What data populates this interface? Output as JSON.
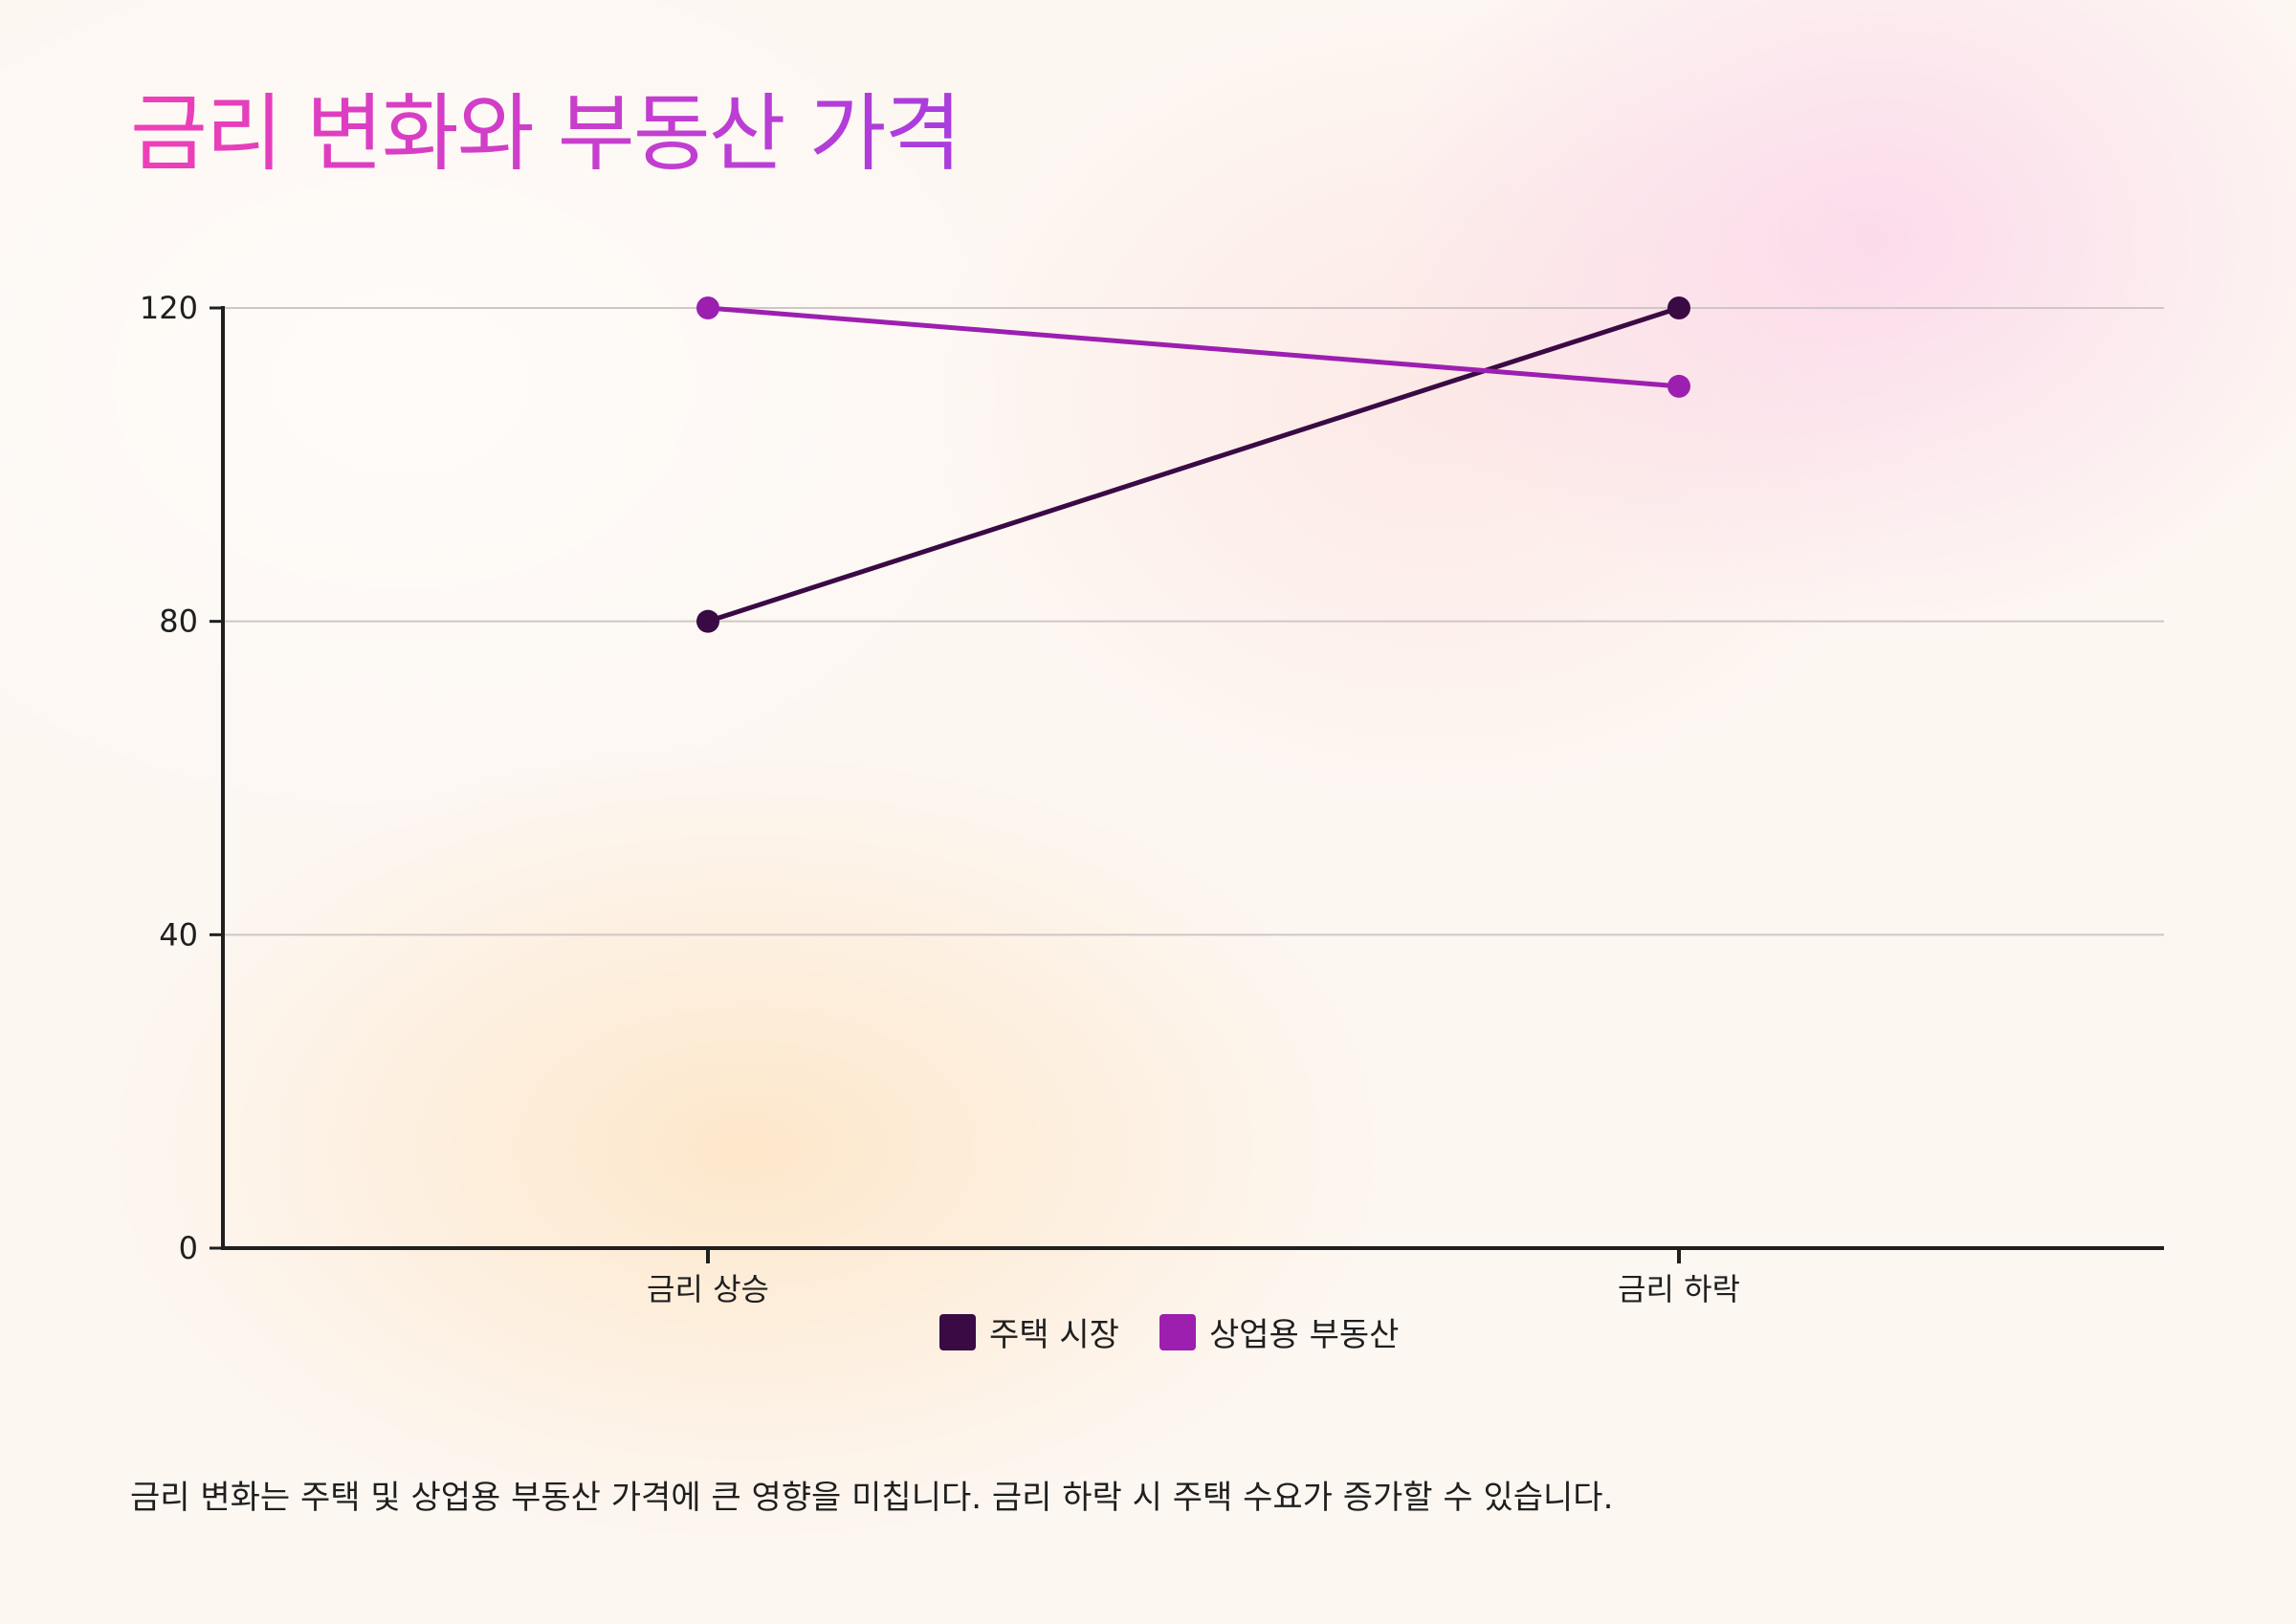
{
  "title": "금리 변화와 부동산 가격",
  "caption": "금리 변화는 주택 및 상업용 부동산 가격에 큰 영향을 미칩니다. 금리 하락 시 주택 수요가 증가할 수 있습니다.",
  "chart_data": {
    "type": "line",
    "categories": [
      "금리 상승",
      "금리 하락"
    ],
    "series": [
      {
        "name": "주택 시장",
        "values": [
          80,
          120
        ],
        "color": "#3a0a45"
      },
      {
        "name": "상업용 부동산",
        "values": [
          120,
          110
        ],
        "color": "#9c1fb0"
      }
    ],
    "ylim": [
      0,
      120
    ],
    "yticks": [
      0,
      40,
      80,
      120
    ],
    "grid": true,
    "legend_position": "bottom-center"
  }
}
